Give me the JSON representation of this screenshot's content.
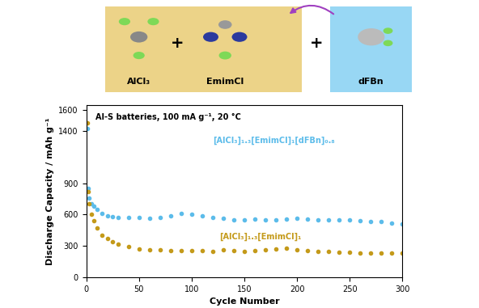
{
  "header": {
    "components": [
      {
        "label": "AlCl₃",
        "color": "#c9a227"
      },
      {
        "label": "EmimCl",
        "color": "#c9a227"
      },
      {
        "label": "dFBn",
        "color": "#4fb3e8"
      }
    ],
    "operator": "+"
  },
  "chart_data": {
    "type": "line",
    "title": "Al-S batteries, 100 mA g⁻¹, 20 °C",
    "x_label": "Cycle Number",
    "y_label": "Discharge Capacity / mAh g⁻¹",
    "x": [
      1,
      2,
      3,
      5,
      7,
      10,
      15,
      20,
      25,
      30,
      40,
      50,
      60,
      70,
      80,
      90,
      100,
      110,
      120,
      130,
      140,
      150,
      160,
      170,
      180,
      190,
      200,
      210,
      220,
      230,
      240,
      250,
      260,
      270,
      280,
      290,
      300
    ],
    "series": [
      {
        "name": "[AlCl₃]₁.₃[EmimCl]₁[dFBn]₀.₈",
        "color": "#5cbcea",
        "marker": "o",
        "line_style": "none",
        "values": [
          1420,
          850,
          760,
          700,
          680,
          650,
          610,
          590,
          580,
          575,
          570,
          570,
          565,
          575,
          590,
          610,
          605,
          590,
          575,
          560,
          550,
          550,
          555,
          545,
          550,
          555,
          565,
          555,
          545,
          545,
          550,
          545,
          540,
          535,
          530,
          520,
          510
        ]
      },
      {
        "name": "[AlCl₃]₁.₃[EmimCl]₁",
        "color": "#c49a1a",
        "marker": "o",
        "line_style": "none",
        "values": [
          1480,
          820,
          700,
          600,
          540,
          470,
          400,
          370,
          340,
          320,
          290,
          270,
          265,
          260,
          258,
          255,
          258,
          255,
          250,
          265,
          255,
          250,
          255,
          265,
          270,
          275,
          265,
          255,
          250,
          245,
          240,
          238,
          235,
          233,
          232,
          233,
          232
        ]
      }
    ],
    "xlim": [
      0,
      300
    ],
    "xticks": [
      0,
      50,
      100,
      150,
      200,
      250,
      300
    ],
    "ylim": [
      0,
      1650
    ],
    "yticks": [
      0,
      300,
      600,
      900,
      1400,
      1600
    ],
    "grid": false
  }
}
